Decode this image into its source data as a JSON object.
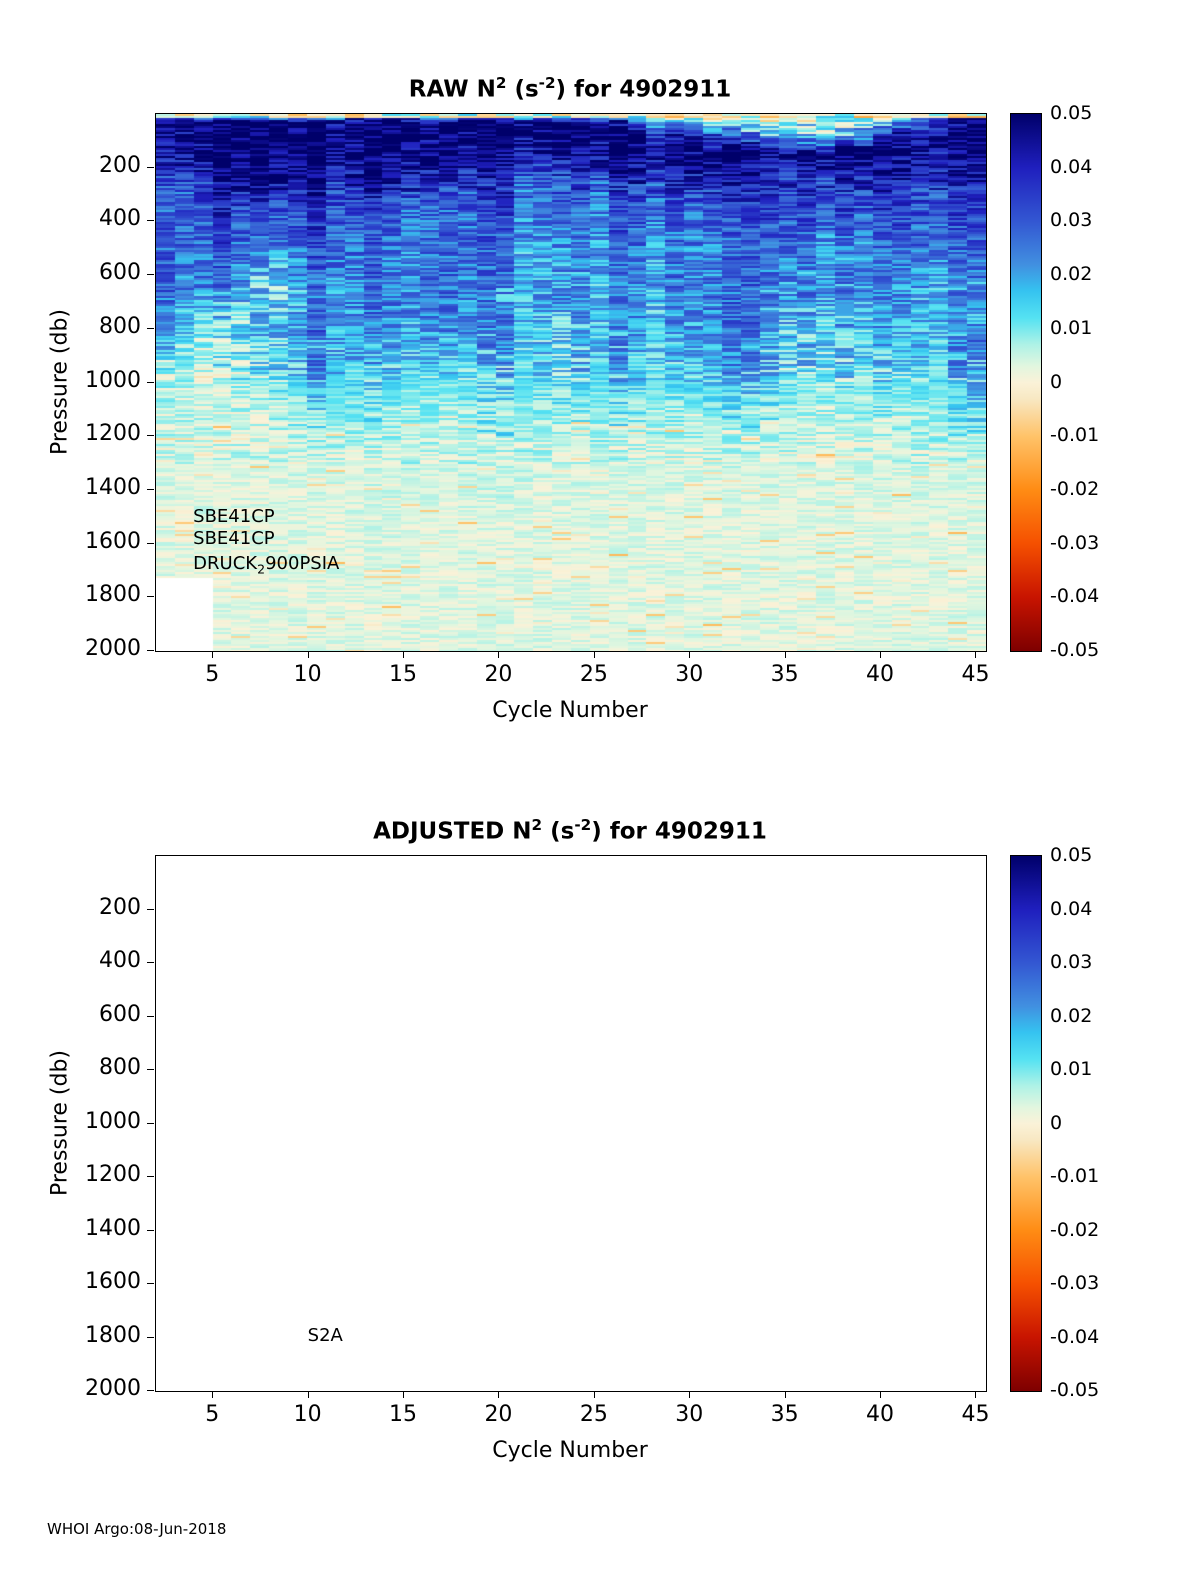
{
  "figure": {
    "footer": "WHOI Argo:08-Jun-2018",
    "background": "#ffffff"
  },
  "colormap": {
    "min": -0.05,
    "max": 0.05,
    "stops": [
      [
        -0.05,
        "#7e0000"
      ],
      [
        -0.04,
        "#c81400"
      ],
      [
        -0.03,
        "#f55000"
      ],
      [
        -0.02,
        "#ff8c14"
      ],
      [
        -0.01,
        "#ffc369"
      ],
      [
        -0.003,
        "#f8e8c3"
      ],
      [
        0.0,
        "#faf2d8"
      ],
      [
        0.003,
        "#e2f6df"
      ],
      [
        0.007,
        "#aff2e6"
      ],
      [
        0.012,
        "#55e2f2"
      ],
      [
        0.017,
        "#35c3f0"
      ],
      [
        0.022,
        "#418fe0"
      ],
      [
        0.03,
        "#3357d2"
      ],
      [
        0.04,
        "#1f1fbe"
      ],
      [
        0.05,
        "#00006a"
      ]
    ]
  },
  "colorbar_ticks": [
    0.05,
    0.04,
    0.03,
    0.02,
    0.01,
    0,
    -0.01,
    -0.02,
    -0.03,
    -0.04,
    -0.05
  ],
  "chart_data": {
    "type": "heatmap",
    "charts": [
      {
        "name": "raw",
        "title": {
          "prefix": "RAW N",
          "sup1": "2",
          "mid": " (s",
          "sup2": "-2",
          "suffix": ") for 4902911"
        },
        "xlabel": "Cycle Number",
        "ylabel": "Pressure (db)",
        "xlim": [
          2,
          45.5
        ],
        "ylim": [
          0,
          2000
        ],
        "y_reversed": true,
        "xticks": [
          5,
          10,
          15,
          20,
          25,
          30,
          35,
          40,
          45
        ],
        "yticks": [
          200,
          400,
          600,
          800,
          1000,
          1200,
          1400,
          1600,
          1800,
          2000
        ],
        "empty": false,
        "annotations": [
          {
            "parts": [
              {
                "t": "SBE41CP"
              }
            ],
            "cycle": 4,
            "pressure": 1510
          },
          {
            "parts": [
              {
                "t": "SBE41CP"
              }
            ],
            "cycle": 4,
            "pressure": 1592
          },
          {
            "parts": [
              {
                "t": "DRUCK"
              },
              {
                "t": "2",
                "sub": true
              },
              {
                "t": "900PSIA"
              }
            ],
            "cycle": 4,
            "pressure": 1682
          }
        ],
        "grid": {
          "pressures": [
            0,
            30,
            80,
            150,
            250,
            350,
            500,
            650,
            800,
            950,
            1100,
            1250,
            1500,
            1750,
            2000
          ],
          "cycles": [
            2,
            5,
            8,
            11,
            14,
            17,
            20,
            23,
            26,
            29,
            32,
            35,
            38,
            41,
            45
          ],
          "values": [
            [
              0.03,
              0.005,
              0.0,
              0.0,
              0.04,
              0.0,
              0.0,
              0.005,
              0.0,
              -0.002,
              -0.003,
              -0.003,
              -0.002,
              0.0,
              0.03
            ],
            [
              0.05,
              0.05,
              0.05,
              0.05,
              0.05,
              0.05,
              0.05,
              0.05,
              0.04,
              0.02,
              0.006,
              0.003,
              0.004,
              0.02,
              0.05
            ],
            [
              0.05,
              0.05,
              0.05,
              0.05,
              0.05,
              0.05,
              0.05,
              0.05,
              0.05,
              0.04,
              0.03,
              0.012,
              0.012,
              0.05,
              0.05
            ],
            [
              0.045,
              0.05,
              0.05,
              0.05,
              0.05,
              0.05,
              0.045,
              0.04,
              0.05,
              0.05,
              0.05,
              0.04,
              0.05,
              0.05,
              0.045
            ],
            [
              0.035,
              0.04,
              0.045,
              0.04,
              0.045,
              0.04,
              0.035,
              0.03,
              0.035,
              0.04,
              0.04,
              0.035,
              0.035,
              0.04,
              0.04
            ],
            [
              0.03,
              0.035,
              0.03,
              0.035,
              0.03,
              0.03,
              0.03,
              0.025,
              0.03,
              0.03,
              0.03,
              0.03,
              0.03,
              0.035,
              0.03
            ],
            [
              0.03,
              0.03,
              0.02,
              0.03,
              0.025,
              0.03,
              0.025,
              0.02,
              0.025,
              0.025,
              0.025,
              0.025,
              0.02,
              0.03,
              0.025
            ],
            [
              0.03,
              0.025,
              0.01,
              0.025,
              0.025,
              0.03,
              0.02,
              0.02,
              0.02,
              0.025,
              0.025,
              0.02,
              0.02,
              0.025,
              0.02
            ],
            [
              0.025,
              0.008,
              0.015,
              0.025,
              0.02,
              0.025,
              0.02,
              0.015,
              0.02,
              0.02,
              0.025,
              0.015,
              0.015,
              0.02,
              0.02
            ],
            [
              0.008,
              0.005,
              0.012,
              0.02,
              0.015,
              0.015,
              0.015,
              0.012,
              0.018,
              0.015,
              0.02,
              0.012,
              0.01,
              0.015,
              0.018
            ],
            [
              0.005,
              0.004,
              0.005,
              0.012,
              0.008,
              0.008,
              0.01,
              0.008,
              0.01,
              0.008,
              0.012,
              0.006,
              0.005,
              0.008,
              0.012
            ],
            [
              0.004,
              0.003,
              0.004,
              0.005,
              0.005,
              0.005,
              0.006,
              0.004,
              0.005,
              0.004,
              0.005,
              0.004,
              0.004,
              0.005,
              0.005
            ],
            [
              0.003,
              0.003,
              0.003,
              0.003,
              0.004,
              0.003,
              0.004,
              0.003,
              0.003,
              0.003,
              0.003,
              0.003,
              0.003,
              0.003,
              0.003
            ],
            [
              0.003,
              0.003,
              0.003,
              0.003,
              0.003,
              0.003,
              0.003,
              0.003,
              0.003,
              0.003,
              0.003,
              0.003,
              0.003,
              0.003,
              0.003
            ],
            [
              0.0025,
              0.003,
              0.003,
              0.003,
              0.003,
              0.003,
              0.003,
              0.003,
              0.003,
              0.003,
              0.003,
              0.003,
              0.003,
              0.003,
              0.003
            ]
          ]
        },
        "texture": {
          "surface_strip_pressure": 12,
          "amps": [
            [
              300,
              0.013
            ],
            [
              1000,
              0.01
            ],
            [
              1300,
              0.006
            ],
            [
              2001,
              0.0035
            ]
          ],
          "deep_neg_chance": 0.05,
          "deep_neg_mag": 0.012,
          "column_jitter": 0.01
        },
        "mask": {
          "cycle_max": 4.7,
          "pressure_min": 1730
        }
      },
      {
        "name": "adjusted",
        "title": {
          "prefix": "ADJUSTED N",
          "sup1": "2",
          "mid": " (s",
          "sup2": "-2",
          "suffix": ") for 4902911"
        },
        "xlabel": "Cycle Number",
        "ylabel": "Pressure (db)",
        "xlim": [
          2,
          45.5
        ],
        "ylim": [
          0,
          2000
        ],
        "y_reversed": true,
        "xticks": [
          5,
          10,
          15,
          20,
          25,
          30,
          35,
          40,
          45
        ],
        "yticks": [
          200,
          400,
          600,
          800,
          1000,
          1200,
          1400,
          1600,
          1800,
          2000
        ],
        "empty": true,
        "annotations": [
          {
            "parts": [
              {
                "t": "S2A"
              }
            ],
            "cycle": 10,
            "pressure": 1800
          }
        ]
      }
    ]
  }
}
